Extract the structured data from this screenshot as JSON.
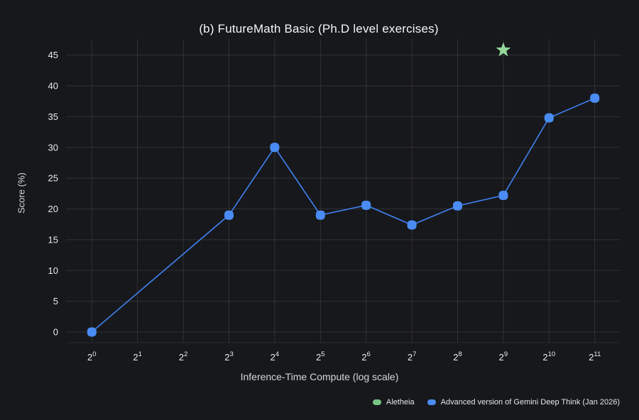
{
  "title": "(b) FutureMath Basic (Ph.D level exercises)",
  "chart_data": {
    "type": "line",
    "title": "(b) FutureMath Basic (Ph.D level exercises)",
    "xlabel": "Inference-Time Compute (log scale)",
    "ylabel": "Score (%)",
    "x_scale": "log2",
    "x_tick_base": "2",
    "x_tick_exponents": [
      0,
      1,
      2,
      3,
      4,
      5,
      6,
      7,
      8,
      9,
      10,
      11
    ],
    "y_ticks": [
      0,
      5,
      10,
      15,
      20,
      25,
      30,
      35,
      40,
      45
    ],
    "ylim": [
      -1.7,
      47.4
    ],
    "grid": true,
    "legend_position": "bottom-right",
    "series": [
      {
        "name": "Advanced version of Gemini Deep Think (Jan 2026)",
        "marker": "rounded-square",
        "color": "#4a8cf3",
        "line_color": "#3f7ce6",
        "x_exponents": [
          0,
          3,
          4,
          5,
          6,
          7,
          8,
          9,
          10,
          11
        ],
        "values": [
          0,
          19,
          30,
          19,
          20.6,
          17.4,
          20.5,
          22.2,
          34.8,
          38
        ]
      },
      {
        "name": "Aletheia",
        "marker": "star",
        "color": "#92d89b",
        "x_exponents": [
          9
        ],
        "values": [
          46
        ]
      }
    ],
    "legend": [
      {
        "label": "Aletheia",
        "color": "#77c484"
      },
      {
        "label": "Advanced version of Gemini Deep Think (Jan 2026)",
        "color": "#4a8cf3"
      }
    ]
  },
  "colors": {
    "background": "#17181c",
    "grid": "rgba(255,255,255,0.11)",
    "plot_bottom_edge": "rgba(255,255,255,0.07)",
    "tick_text": "#e8eaed",
    "title_text": "#f4f5f6",
    "axis_label_text": "#d3d6da",
    "legend_text": "#e4e6e9"
  }
}
